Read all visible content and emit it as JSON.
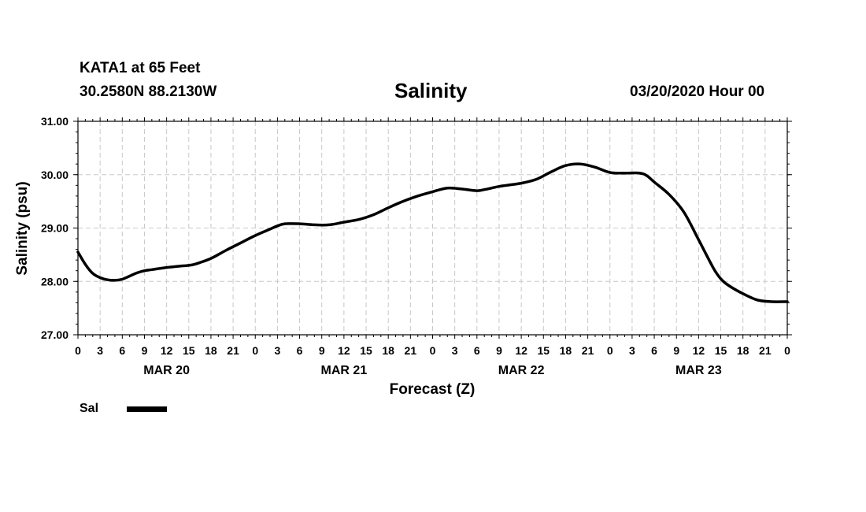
{
  "header": {
    "station": "KATA1 at 65 Feet",
    "coords": "30.2580N 88.2130W",
    "title": "Salinity",
    "datetime": "03/20/2020 Hour 00"
  },
  "legend": {
    "label": "Sal",
    "color": "#000000"
  },
  "chart_data": {
    "type": "line",
    "title": "Salinity",
    "xlabel": "Forecast (Z)",
    "ylabel": "Salinity (psu)",
    "ylim": [
      27.0,
      31.0
    ],
    "xlim": [
      0,
      96
    ],
    "grid": true,
    "yticks": [
      "27.00",
      "28.00",
      "29.00",
      "30.00",
      "31.00"
    ],
    "xtick_labels": [
      "0",
      "3",
      "6",
      "9",
      "12",
      "15",
      "18",
      "21",
      "0",
      "3",
      "6",
      "9",
      "12",
      "15",
      "18",
      "21",
      "0",
      "3",
      "6",
      "9",
      "12",
      "15",
      "18",
      "21",
      "0",
      "3",
      "6",
      "9",
      "12",
      "15",
      "18",
      "21",
      "0"
    ],
    "date_labels": [
      {
        "label": "MAR 20",
        "hour": 12
      },
      {
        "label": "MAR 21",
        "hour": 36
      },
      {
        "label": "MAR 22",
        "hour": 60
      },
      {
        "label": "MAR 23",
        "hour": 84
      }
    ],
    "series": [
      {
        "name": "Sal",
        "color": "#000000",
        "x": [
          0,
          1,
          2,
          3,
          4,
          5,
          6,
          7,
          8,
          9,
          10,
          12,
          14,
          15,
          16,
          18,
          20,
          22,
          24,
          26,
          27,
          28,
          30,
          32,
          34,
          36,
          38,
          40,
          42,
          44,
          46,
          48,
          50,
          52,
          54,
          55,
          56,
          57,
          58,
          60,
          62,
          64,
          66,
          68,
          70,
          72,
          74,
          76,
          77,
          78,
          80,
          82,
          84,
          86,
          87,
          88,
          90,
          92,
          94,
          96
        ],
        "values": [
          28.55,
          28.32,
          28.15,
          28.07,
          28.03,
          28.02,
          28.04,
          28.1,
          28.16,
          28.2,
          28.22,
          28.26,
          28.29,
          28.3,
          28.33,
          28.43,
          28.58,
          28.72,
          28.86,
          28.98,
          29.04,
          29.08,
          29.08,
          29.06,
          29.06,
          29.11,
          29.16,
          29.25,
          29.38,
          29.5,
          29.6,
          29.68,
          29.75,
          29.73,
          29.7,
          29.72,
          29.75,
          29.78,
          29.8,
          29.84,
          29.91,
          30.05,
          30.17,
          30.2,
          30.14,
          30.04,
          30.03,
          30.03,
          29.98,
          29.86,
          29.63,
          29.3,
          28.78,
          28.25,
          28.05,
          27.93,
          27.77,
          27.65,
          27.62,
          27.62
        ]
      }
    ]
  }
}
